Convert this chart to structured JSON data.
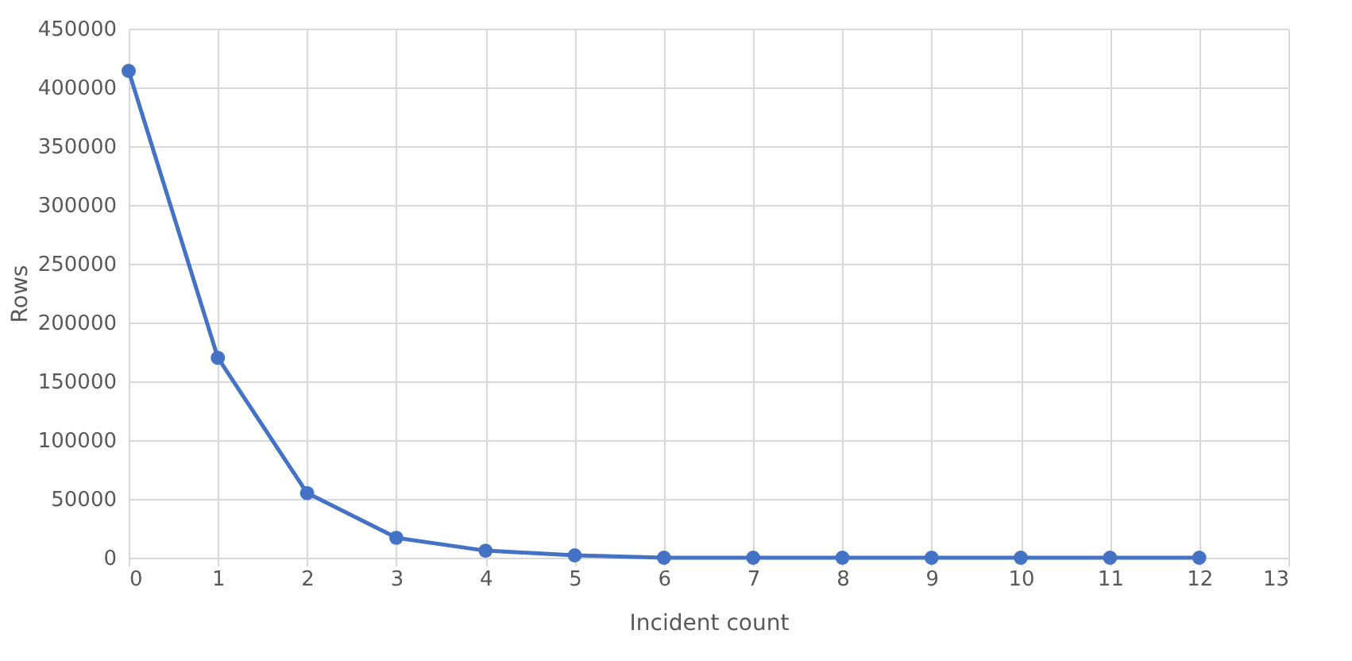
{
  "chart_data": {
    "type": "line",
    "xlabel": "Incident count",
    "ylabel": "Rows",
    "x": [
      0,
      1,
      2,
      3,
      4,
      5,
      6,
      7,
      8,
      9,
      10,
      11,
      12
    ],
    "series": [
      {
        "color": "#4472c4",
        "values": [
          414000,
          170000,
          55000,
          17000,
          6000,
          2000,
          0,
          0,
          0,
          0,
          0,
          0,
          0
        ]
      }
    ],
    "xlim": [
      0,
      13
    ],
    "xticks": [
      0,
      1,
      2,
      3,
      4,
      5,
      6,
      7,
      8,
      9,
      10,
      11,
      12,
      13
    ],
    "ylim": [
      0,
      450000
    ],
    "yticks": [
      0,
      50000,
      100000,
      150000,
      200000,
      250000,
      300000,
      350000,
      400000,
      450000
    ],
    "grid": true,
    "marker": "circle",
    "line_style": "solid"
  }
}
